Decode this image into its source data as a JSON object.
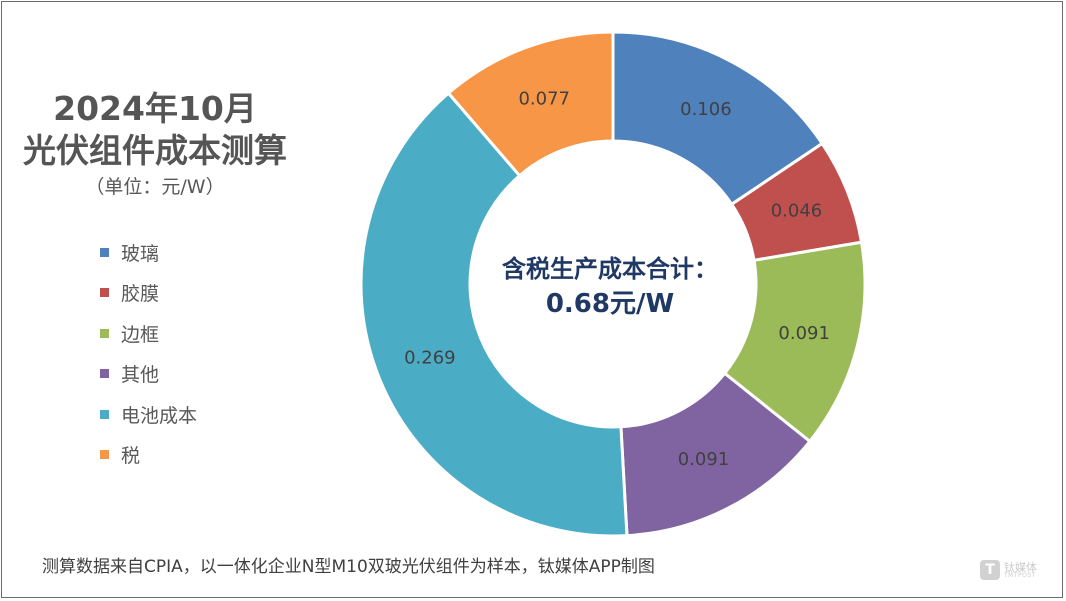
{
  "chart_data": {
    "type": "pie",
    "title": "2024年10月",
    "title_line2": "光伏组件成本测算",
    "subtitle": "（单位：元/W）",
    "center_label_line1": "含税生产成本合计：",
    "center_label_line2": "0.68元/W",
    "legend_position": "left",
    "series": [
      {
        "name": "玻璃",
        "value": 0.106,
        "label": "0.106",
        "color": "#4f81bd"
      },
      {
        "name": "胶膜",
        "value": 0.046,
        "label": "0.046",
        "color": "#c0504d"
      },
      {
        "name": "边框",
        "value": 0.091,
        "label": "0.091",
        "color": "#9bbb59"
      },
      {
        "name": "其他",
        "value": 0.091,
        "label": "0.091",
        "color": "#8064a2"
      },
      {
        "name": "电池成本",
        "value": 0.269,
        "label": "0.269",
        "color": "#4bacc6"
      },
      {
        "name": "税",
        "value": 0.077,
        "label": "0.077",
        "color": "#f79646"
      }
    ]
  },
  "footnote": "测算数据来自CPIA，以一体化企业N型M10双玻光伏组件为样本，钛媒体APP制图",
  "watermark": {
    "icon_glyph": "T",
    "brand": "钛媒体",
    "brand_en": "TMTPOST"
  }
}
